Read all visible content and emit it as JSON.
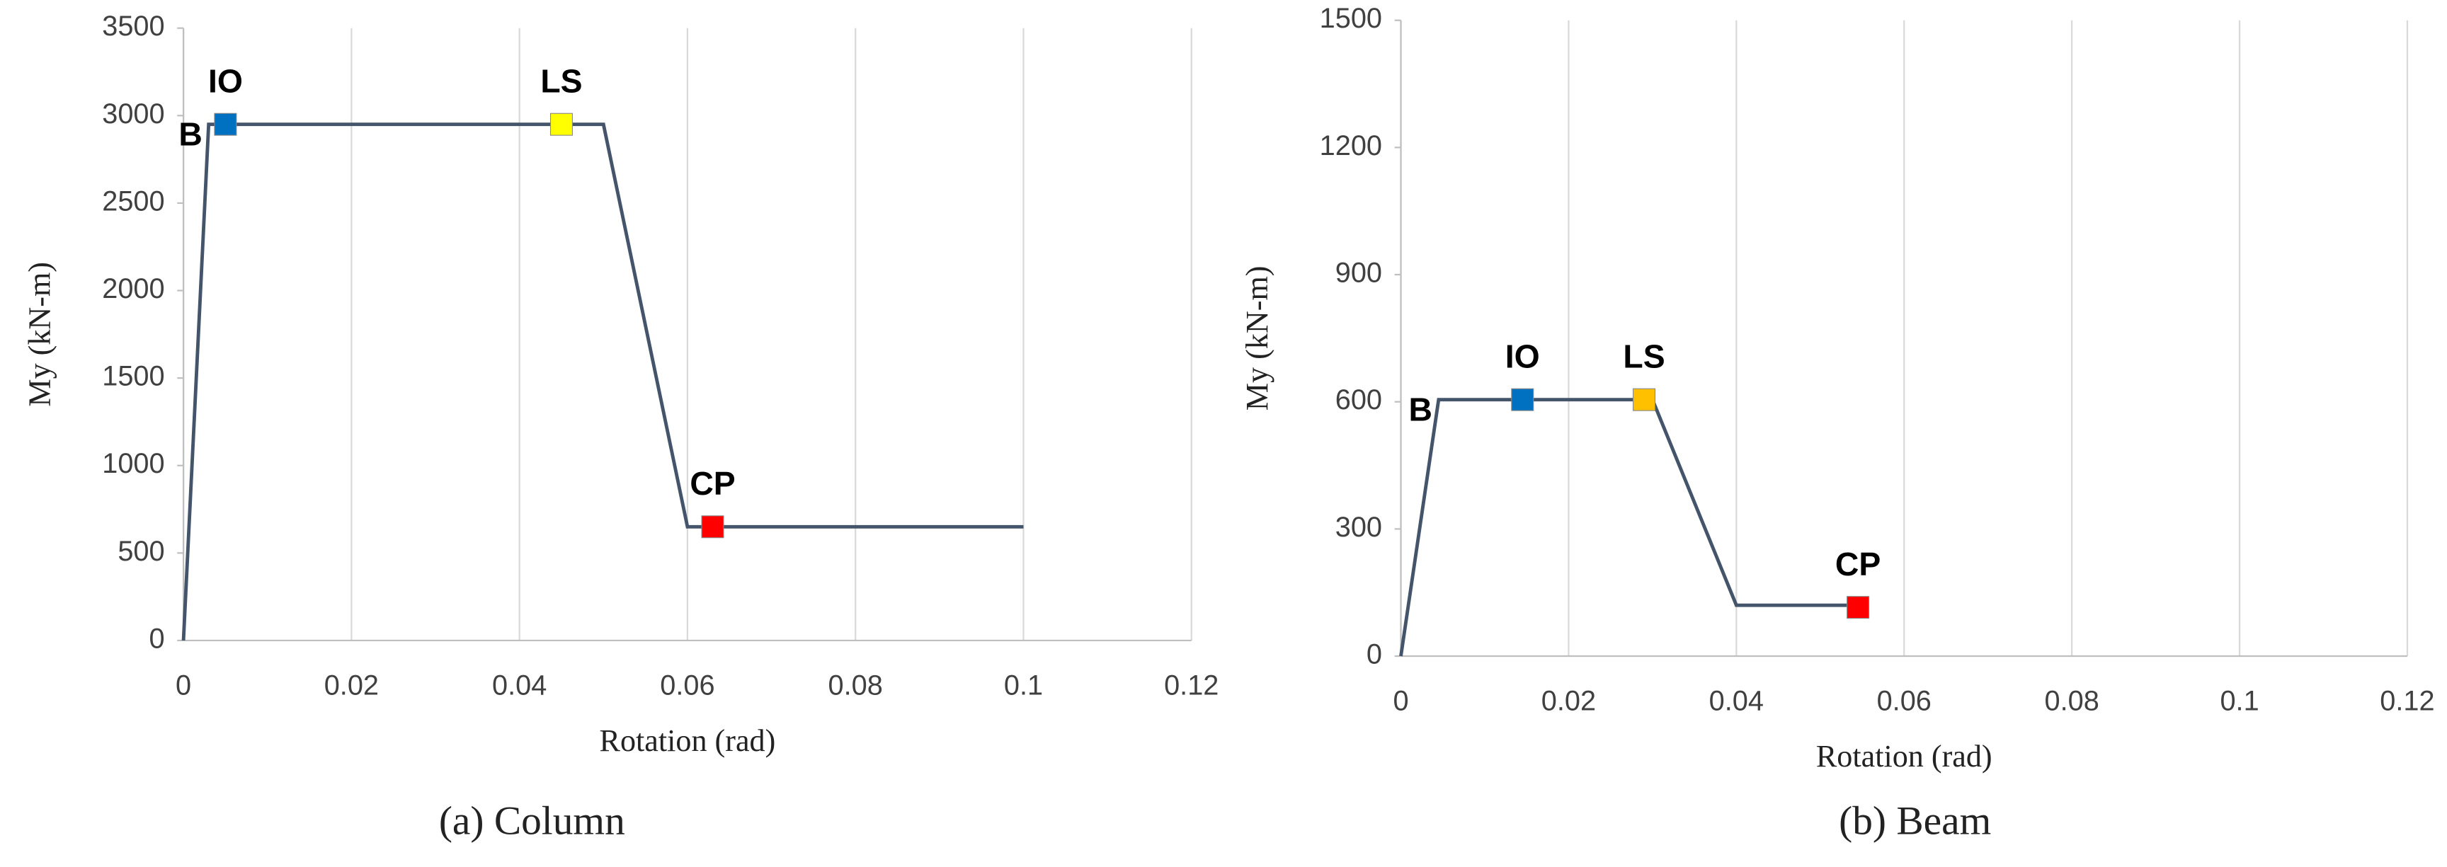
{
  "chart_data": [
    {
      "type": "line",
      "caption": "(a) Column",
      "xlabel": "Rotation (rad)",
      "ylabel": "My (kN-m)",
      "xlim": [
        0,
        0.12
      ],
      "xticks": [
        0,
        0.02,
        0.04,
        0.06,
        0.08,
        0.1,
        0.12
      ],
      "ylim": [
        0,
        3500
      ],
      "yticks": [
        0,
        500,
        1000,
        1500,
        2000,
        2500,
        3000,
        3500
      ],
      "grid": "x",
      "series": [
        {
          "color": "#44546a",
          "x": [
            0,
            0.003,
            0.05,
            0.06,
            0.1
          ],
          "values": [
            0,
            2950,
            2950,
            650,
            650
          ]
        }
      ],
      "points": [
        {
          "label": "B",
          "x": 0.003,
          "y": 2950
        },
        {
          "label": "IO",
          "x": 0.005,
          "y": 2950,
          "color": "#0070c0"
        },
        {
          "label": "LS",
          "x": 0.045,
          "y": 2950,
          "color": "#ffff00"
        },
        {
          "label": "CP",
          "x": 0.063,
          "y": 650,
          "color": "#ff0000"
        }
      ]
    },
    {
      "type": "line",
      "caption": "(b) Beam",
      "xlabel": "Rotation (rad)",
      "ylabel": "My (kN-m)",
      "xlim": [
        0,
        0.12
      ],
      "xticks": [
        0,
        0.02,
        0.04,
        0.06,
        0.08,
        0.1,
        0.12
      ],
      "ylim": [
        0,
        1500
      ],
      "yticks": [
        0,
        300,
        600,
        900,
        1200,
        1500
      ],
      "grid": "x",
      "series": [
        {
          "color": "#44546a",
          "x": [
            0,
            0.0045,
            0.03,
            0.04,
            0.055
          ],
          "values": [
            0,
            605,
            605,
            120,
            120
          ]
        }
      ],
      "points": [
        {
          "label": "B",
          "x": 0.0045,
          "y": 605
        },
        {
          "label": "IO",
          "x": 0.0145,
          "y": 605,
          "color": "#0070c0"
        },
        {
          "label": "LS",
          "x": 0.029,
          "y": 605,
          "color": "#ffc000"
        },
        {
          "label": "CP",
          "x": 0.0545,
          "y": 115,
          "color": "#ff0000"
        }
      ]
    }
  ]
}
